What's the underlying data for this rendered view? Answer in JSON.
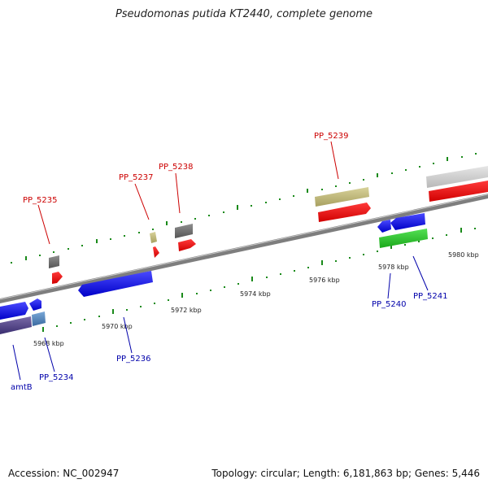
{
  "title": "Pseudomonas putida KT2440, complete genome",
  "footer": {
    "accession": "Accession: NC_002947",
    "summary": "Topology: circular; Length: 6,181,863 bp; Genes: 5,446"
  },
  "scale_labels": [
    "5968 kbp",
    "5970 kbp",
    "5972 kbp",
    "5974 kbp",
    "5976 kbp",
    "5978 kbp",
    "5980 kbp"
  ],
  "gene_labels_top": [
    "PP_5235",
    "PP_5237",
    "PP_5238",
    "PP_5239"
  ],
  "gene_labels_bottom": [
    "amtB",
    "PP_5234",
    "PP_5236",
    "PP_5240",
    "PP_5241"
  ],
  "colors": {
    "backbone": "#8a8a8a",
    "tick": "#1a8a1a",
    "top_label": "#cc0000",
    "bottom_label": "#0000aa"
  }
}
